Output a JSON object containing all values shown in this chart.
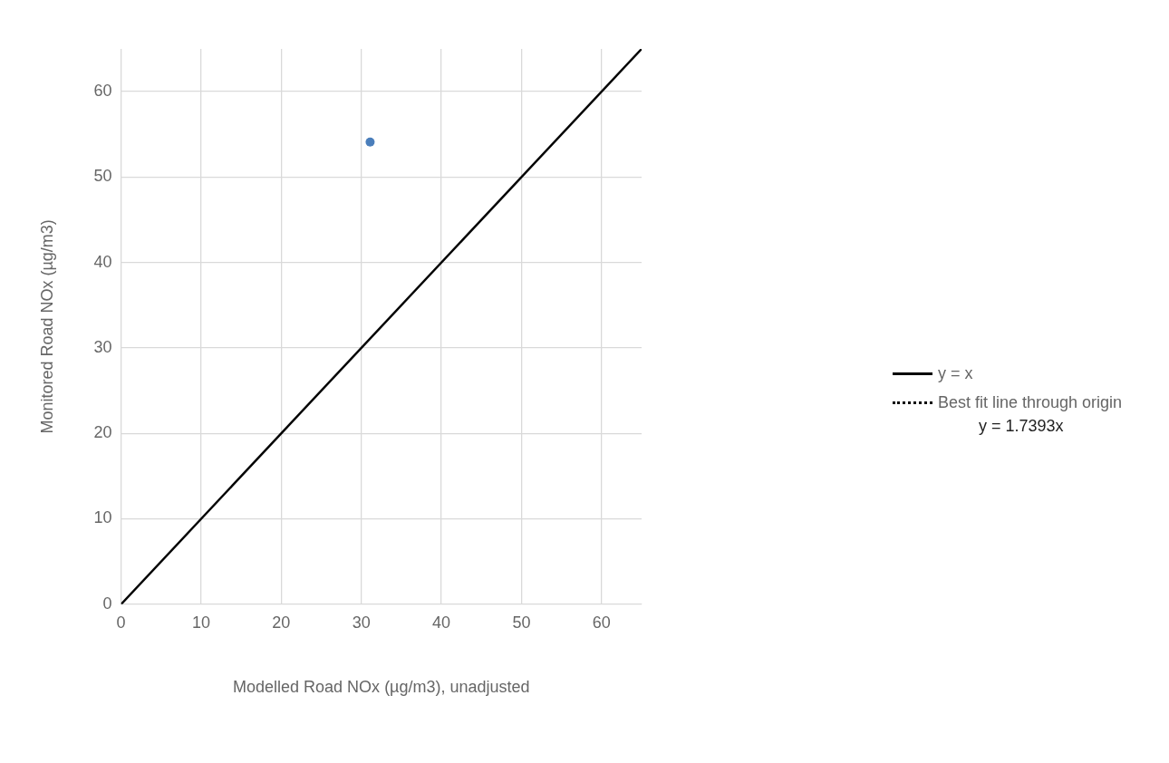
{
  "chart_data": {
    "type": "scatter",
    "xlabel": "Modelled Road NOx (µg/m3), unadjusted",
    "ylabel": "Monitored Road NOx (µg/m3)",
    "xlim": [
      0,
      65
    ],
    "ylim": [
      0,
      65
    ],
    "xticks": [
      0,
      10,
      20,
      30,
      40,
      50,
      60
    ],
    "yticks": [
      0,
      10,
      20,
      30,
      40,
      50,
      60
    ],
    "grid": true,
    "legend": "right",
    "marker": "circle",
    "series": [
      {
        "color": "#4a7ebb",
        "x": [
          31.1
        ],
        "values": [
          54.1
        ]
      },
      {
        "type": "line",
        "name": "y = x",
        "color": "#000000",
        "line_style": "solid",
        "marker": "none",
        "x": [
          0,
          65
        ],
        "values": [
          0,
          65
        ]
      },
      {
        "type": "line",
        "name": "Best fit line through origin",
        "color": "#000000",
        "line_style": "dotted",
        "marker": "none"
      }
    ],
    "annotations": [
      "y = 1.7393x"
    ]
  }
}
